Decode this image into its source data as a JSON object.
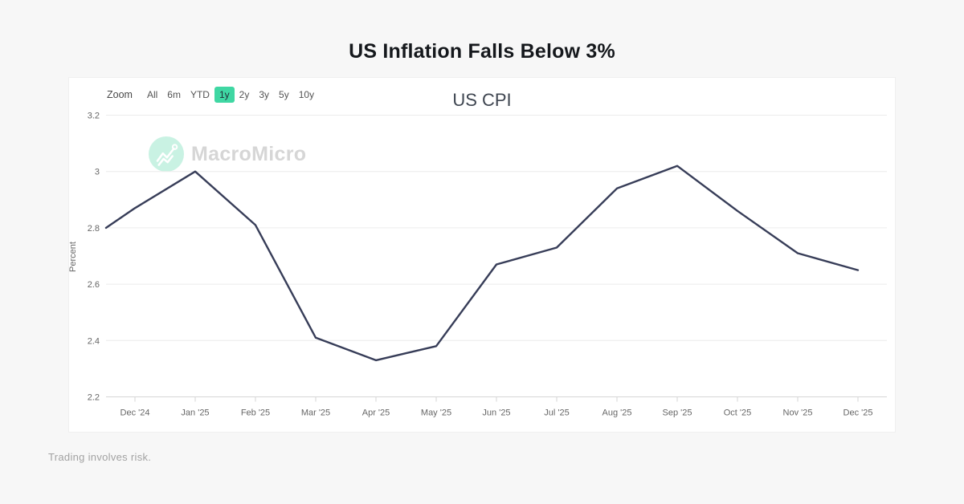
{
  "page": {
    "title": "US Inflation Falls Below 3%",
    "disclaimer": "Trading involves risk."
  },
  "toolbar": {
    "zoom_label": "Zoom",
    "ranges": [
      "All",
      "6m",
      "YTD",
      "1y",
      "2y",
      "3y",
      "5y",
      "10y"
    ],
    "selected": "1y"
  },
  "watermark": {
    "brand": "MacroMicro"
  },
  "colors": {
    "accent_green": "#3fd7a3",
    "line": "#373d58",
    "page_bg": "#f7f7f7",
    "grid": "#ececec",
    "axis": "#d6d6d6",
    "axis_text": "#666666"
  },
  "chart_data": {
    "type": "line",
    "title": "US CPI",
    "xlabel": "",
    "ylabel": "Percent",
    "ylim": [
      2.2,
      3.2
    ],
    "grid": true,
    "legend": false,
    "line_color": "#373d58",
    "y_tick_labels": [
      "3.2",
      "3",
      "2.8",
      "2.6",
      "2.4",
      "2.2"
    ],
    "y_tick_values": [
      3.2,
      3.0,
      2.8,
      2.6,
      2.4,
      2.2
    ],
    "categories": [
      "Dec '24",
      "Jan '25",
      "Feb '25",
      "Mar '25",
      "Apr '25",
      "May '25",
      "Jun '25",
      "Jul '25",
      "Aug '25",
      "Sep '25",
      "Oct '25",
      "Nov '25",
      "Dec '25"
    ],
    "values": [
      2.87,
      3.0,
      2.81,
      2.41,
      2.33,
      2.38,
      2.67,
      2.73,
      2.94,
      3.02,
      2.86,
      2.71,
      2.65
    ],
    "edge_start": {
      "months_before_first": 0.48,
      "value": 2.8
    }
  }
}
